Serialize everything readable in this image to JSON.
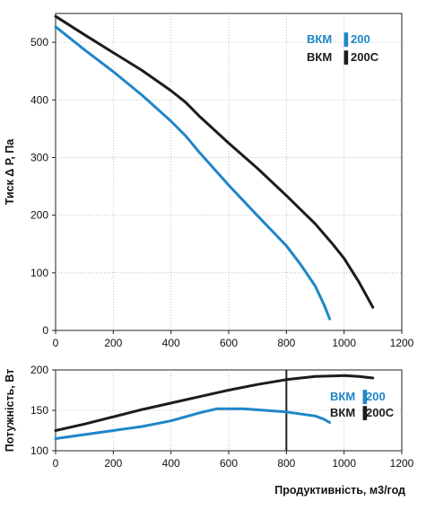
{
  "chart_data": [
    {
      "type": "line",
      "ylabel": "Тиск Δ Р, Па",
      "xlabel": "",
      "xlim": [
        0,
        1200
      ],
      "ylim": [
        0,
        550
      ],
      "xticks": [
        0,
        200,
        400,
        600,
        800,
        1000,
        1200
      ],
      "yticks": [
        0,
        100,
        200,
        300,
        400,
        500
      ],
      "grid": true,
      "legend_position": "top-right",
      "series": [
        {
          "name": "ВКМ▐ 200",
          "color": "#1f86c8",
          "points": [
            [
              0,
              527
            ],
            [
              100,
              487
            ],
            [
              200,
              449
            ],
            [
              300,
              408
            ],
            [
              400,
              363
            ],
            [
              450,
              338
            ],
            [
              500,
              308
            ],
            [
              600,
              252
            ],
            [
              700,
              199
            ],
            [
              800,
              147
            ],
            [
              850,
              114
            ],
            [
              900,
              77
            ],
            [
              930,
              45
            ],
            [
              950,
              20
            ]
          ]
        },
        {
          "name": "ВКМ▐ 200С",
          "color": "#1c1c1c",
          "points": [
            [
              0,
              545
            ],
            [
              100,
              513
            ],
            [
              200,
              482
            ],
            [
              300,
              451
            ],
            [
              400,
              416
            ],
            [
              450,
              396
            ],
            [
              500,
              371
            ],
            [
              600,
              325
            ],
            [
              700,
              281
            ],
            [
              800,
              234
            ],
            [
              900,
              185
            ],
            [
              960,
              150
            ],
            [
              1000,
              125
            ],
            [
              1050,
              85
            ],
            [
              1100,
              40
            ]
          ]
        }
      ]
    },
    {
      "type": "line",
      "ylabel": "Потужність, Вт",
      "xlabel": "Продуктивність, м3/год",
      "xlim": [
        0,
        1200
      ],
      "ylim": [
        100,
        200
      ],
      "xticks": [
        0,
        200,
        400,
        600,
        800,
        1000,
        1200
      ],
      "yticks": [
        100,
        150,
        200
      ],
      "grid": true,
      "legend_position": "right",
      "marker_line_x": 800,
      "series": [
        {
          "name": "ВКМ▐ 200",
          "color": "#1f86c8",
          "points": [
            [
              0,
              115
            ],
            [
              100,
              120
            ],
            [
              200,
              125
            ],
            [
              300,
              130
            ],
            [
              400,
              137
            ],
            [
              500,
              147
            ],
            [
              560,
              152
            ],
            [
              650,
              152
            ],
            [
              800,
              148
            ],
            [
              900,
              143
            ],
            [
              930,
              139
            ],
            [
              950,
              135
            ]
          ]
        },
        {
          "name": "ВКМ▐ 200С",
          "color": "#1c1c1c",
          "points": [
            [
              0,
              125
            ],
            [
              100,
              133
            ],
            [
              200,
              142
            ],
            [
              300,
              151
            ],
            [
              400,
              159
            ],
            [
              500,
              167
            ],
            [
              600,
              175
            ],
            [
              700,
              182
            ],
            [
              800,
              188
            ],
            [
              900,
              192
            ],
            [
              1000,
              193
            ],
            [
              1050,
              192
            ],
            [
              1100,
              190
            ]
          ]
        }
      ]
    }
  ]
}
